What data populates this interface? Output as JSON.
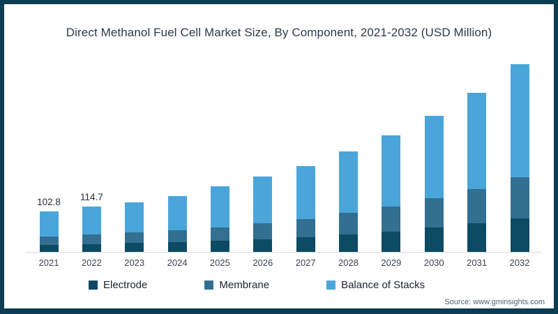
{
  "frame": {
    "border_color": "#0d3d52",
    "background_color": "#ffffff"
  },
  "chart_data": {
    "type": "bar",
    "stacked": true,
    "title": "Direct Methanol Fuel Cell Market Size, By Component, 2021-2032 (USD Million)",
    "xlabel": "",
    "ylabel": "",
    "ylim": [
      0,
      500
    ],
    "grid": false,
    "legend_position": "bottom",
    "categories": [
      "2021",
      "2022",
      "2023",
      "2024",
      "2025",
      "2026",
      "2027",
      "2028",
      "2029",
      "2030",
      "2031",
      "2032"
    ],
    "series": [
      {
        "name": "Electrode",
        "color": "#0d4a63",
        "values": [
          17.6,
          19.5,
          22.9,
          25.6,
          28.2,
          31.7,
          37.9,
          44.1,
          51.1,
          61.7,
          72.3,
          84.6
        ]
      },
      {
        "name": "Membrane",
        "color": "#326f90",
        "values": [
          21.7,
          24.0,
          26.4,
          29.1,
          33.5,
          40.6,
          45.8,
          54.7,
          63.5,
          74.1,
          86.4,
          104.0
        ]
      },
      {
        "name": "Balance of Stacks",
        "color": "#4aa5da",
        "values": [
          63.5,
          71.2,
          76.7,
          86.4,
          104.6,
          117.6,
          133.7,
          155.2,
          179.3,
          208.1,
          243.9,
          285.7
        ]
      }
    ],
    "totals": [
      102.8,
      114.7,
      126.0,
      141.1,
      166.3,
      189.9,
      217.4,
      254.0,
      293.9,
      343.9,
      402.6,
      474.3
    ],
    "bar_labels": {
      "2021": "102.8",
      "2022": "114.7"
    }
  },
  "source": {
    "label": "Source: www.gminsights.com"
  }
}
